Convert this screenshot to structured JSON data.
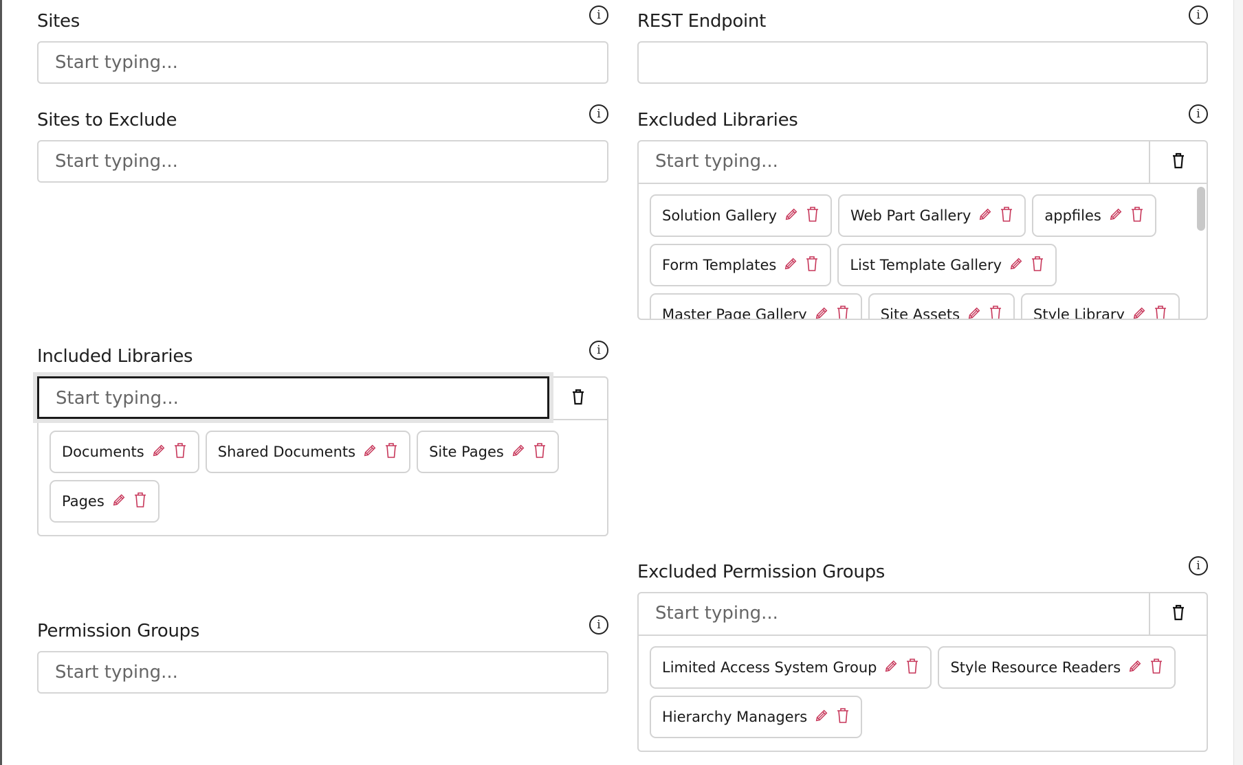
{
  "accent": "#c7375a",
  "sites": {
    "label": "Sites",
    "placeholder": "Start typing..."
  },
  "rest": {
    "label": "REST Endpoint",
    "value": ""
  },
  "sites_exclude": {
    "label": "Sites to Exclude",
    "placeholder": "Start typing..."
  },
  "excluded_libraries": {
    "label": "Excluded Libraries",
    "placeholder": "Start typing...",
    "items": [
      "Solution Gallery",
      "Web Part Gallery",
      "appfiles",
      "Form Templates",
      "List Template Gallery",
      "Master Page Gallery",
      "Site Assets",
      "Style Library"
    ]
  },
  "included_libraries": {
    "label": "Included Libraries",
    "placeholder": "Start typing...",
    "items": [
      "Documents",
      "Shared Documents",
      "Site Pages",
      "Pages"
    ]
  },
  "excluded_groups": {
    "label": "Excluded Permission Groups",
    "placeholder": "Start typing...",
    "items": [
      "Limited Access System Group",
      "Style Resource Readers",
      "Hierarchy Managers"
    ]
  },
  "permission_groups": {
    "label": "Permission Groups",
    "placeholder": "Start typing..."
  },
  "icons": {
    "info": "info-circle-icon",
    "edit": "pencil-icon",
    "delete": "trash-icon",
    "info_glyph": "i"
  }
}
